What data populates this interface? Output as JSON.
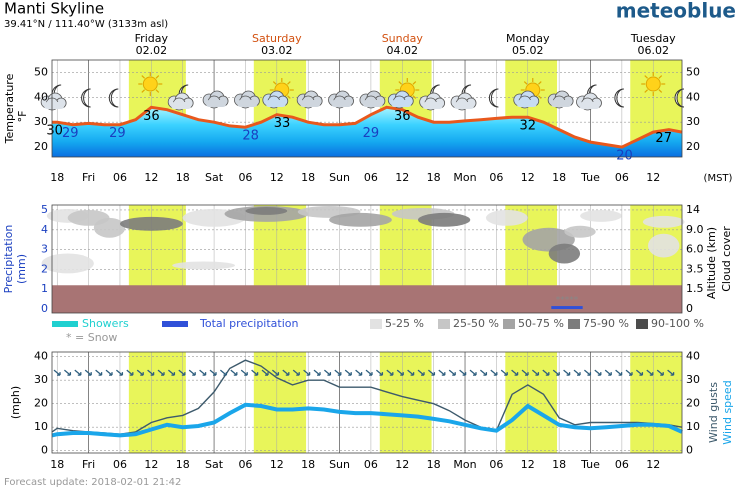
{
  "header": {
    "title": "Manti Skyline",
    "location": "39.41°N / 111.40°W (3133m asl)",
    "brand": "meteoblue"
  },
  "footer": "Forecast update: 2018-02-01 21:42",
  "timezone": "(MST)",
  "daylight": [
    [
      13.7,
      24.6
    ],
    [
      37.6,
      47.6
    ],
    [
      61.7,
      71.6
    ],
    [
      85.7,
      95.6
    ],
    [
      109.6,
      119.5
    ]
  ],
  "chart_data": [
    {
      "type": "line",
      "ylabel": "Temperature",
      "yunit": "°F",
      "xlim": [
        -1,
        119.5
      ],
      "ylim": [
        16,
        55
      ],
      "yticks": [
        20,
        30,
        40,
        50
      ],
      "color": "#e8581c",
      "xticks": [
        {
          "value": 0,
          "label": "18"
        },
        {
          "value": 6,
          "label": "Fri"
        },
        {
          "value": 12,
          "label": "06"
        },
        {
          "value": 18,
          "label": "12"
        },
        {
          "value": 24,
          "label": "18"
        },
        {
          "value": 30,
          "label": "Sat"
        },
        {
          "value": 36,
          "label": "06"
        },
        {
          "value": 42,
          "label": "12"
        },
        {
          "value": 48,
          "label": "18"
        },
        {
          "value": 54,
          "label": "Sun"
        },
        {
          "value": 60,
          "label": "06"
        },
        {
          "value": 66,
          "label": "12"
        },
        {
          "value": 72,
          "label": "18"
        },
        {
          "value": 78,
          "label": "Mon"
        },
        {
          "value": 84,
          "label": "06"
        },
        {
          "value": 90,
          "label": "12"
        },
        {
          "value": 96,
          "label": "18"
        },
        {
          "value": 102,
          "label": "Tue"
        },
        {
          "value": 108,
          "label": "06"
        },
        {
          "value": 114,
          "label": "12"
        }
      ],
      "day_labels": [
        {
          "x": 18,
          "day": "Friday",
          "date": "02.02",
          "color": "#000000"
        },
        {
          "x": 42,
          "day": "Saturday",
          "date": "03.02",
          "color": "#d2500f"
        },
        {
          "x": 66,
          "day": "Sunday",
          "date": "04.02",
          "color": "#d2500f"
        },
        {
          "x": 90,
          "day": "Monday",
          "date": "05.02",
          "color": "#000000"
        },
        {
          "x": 114,
          "day": "Tuesday",
          "date": "06.02",
          "color": "#000000"
        }
      ],
      "x": [
        -1,
        0,
        3,
        6,
        9,
        12,
        15,
        18,
        21,
        24,
        27,
        30,
        33,
        36,
        39,
        42,
        45,
        48,
        51,
        54,
        57,
        60,
        63,
        66,
        69,
        72,
        75,
        78,
        81,
        84,
        87,
        90,
        93,
        96,
        99,
        102,
        105,
        108,
        111,
        114,
        117,
        119.5
      ],
      "values": [
        30,
        30,
        29,
        29.5,
        29,
        29,
        31,
        36,
        35,
        33,
        31,
        30,
        28.5,
        28,
        30,
        33,
        32,
        30,
        29,
        29,
        29.5,
        33,
        36,
        35,
        32,
        30,
        30,
        30.5,
        31,
        31.5,
        32,
        32,
        30,
        27,
        24,
        22,
        21,
        20,
        23,
        26,
        27,
        26
      ],
      "temperature_labels": [
        {
          "x": -0.5,
          "value": 30,
          "color": "#000000"
        },
        {
          "x": 2.5,
          "value": 29,
          "color": "#1a3fc0"
        },
        {
          "x": 11.5,
          "value": 29,
          "color": "#1a3fc0"
        },
        {
          "x": 18,
          "value": 36,
          "color": "#000000"
        },
        {
          "x": 37,
          "value": 28,
          "color": "#1a3fc0"
        },
        {
          "x": 43,
          "value": 33,
          "color": "#000000"
        },
        {
          "x": 60,
          "value": 29,
          "color": "#1a3fc0"
        },
        {
          "x": 66,
          "value": 36,
          "color": "#000000"
        },
        {
          "x": 90,
          "value": 32,
          "color": "#000000"
        },
        {
          "x": 108.5,
          "value": 20,
          "color": "#1a3fc0"
        },
        {
          "x": 116,
          "value": 27,
          "color": "#000000"
        }
      ],
      "icons": [
        {
          "x": -0.4,
          "kind": "cloudmoon"
        },
        {
          "x": 6,
          "kind": "moon"
        },
        {
          "x": 11.3,
          "kind": "moon"
        },
        {
          "x": 17.8,
          "kind": "sun"
        },
        {
          "x": 23.9,
          "kind": "cloudmoon"
        },
        {
          "x": 30,
          "kind": "cloud"
        },
        {
          "x": 36,
          "kind": "cloud"
        },
        {
          "x": 42,
          "kind": "suncloud"
        },
        {
          "x": 48,
          "kind": "cloud"
        },
        {
          "x": 54,
          "kind": "cloud"
        },
        {
          "x": 60,
          "kind": "cloud"
        },
        {
          "x": 66,
          "kind": "suncloud"
        },
        {
          "x": 72,
          "kind": "cloudmoon"
        },
        {
          "x": 78,
          "kind": "cloudmoon"
        },
        {
          "x": 84,
          "kind": "moon"
        },
        {
          "x": 90,
          "kind": "suncloud"
        },
        {
          "x": 96,
          "kind": "cloud"
        },
        {
          "x": 102,
          "kind": "cloudmoon"
        },
        {
          "x": 108,
          "kind": "moon"
        },
        {
          "x": 114,
          "kind": "sun"
        },
        {
          "x": 119.5,
          "kind": "moon"
        }
      ]
    },
    {
      "type": "cloud",
      "ylabel": "Precipitation",
      "yunit": "(mm)",
      "y2label": "Altitude (km)",
      "y3label": "Cloud cover",
      "xlim": [
        -1,
        119.5
      ],
      "ylim": [
        -0.2,
        5.25
      ],
      "yticks": [
        0,
        1,
        2,
        3,
        4,
        5
      ],
      "xticks": [
        0,
        6,
        12,
        18,
        24,
        30,
        36,
        42,
        48,
        54,
        60,
        66,
        72,
        78,
        84,
        90,
        96,
        102,
        108,
        114
      ],
      "y2ticks": [
        {
          "value": 0,
          "label": "0"
        },
        {
          "value": 1.5,
          "label": "1.5"
        },
        {
          "value": 3.5,
          "label": "3.5"
        },
        {
          "value": 6,
          "label": "6.0"
        },
        {
          "value": 9,
          "label": "9.0"
        },
        {
          "value": 14,
          "label": "14"
        }
      ],
      "low_cloud": {
        "top": 1.2,
        "color": "#a87474"
      },
      "cloud_patches": [
        {
          "x": 2,
          "y": 4.7,
          "rx": 4,
          "ry": 0.35,
          "shade": 0
        },
        {
          "x": 6,
          "y": 4.6,
          "rx": 4,
          "ry": 0.4,
          "shade": 1
        },
        {
          "x": 10,
          "y": 4.1,
          "rx": 3,
          "ry": 0.5,
          "shade": 1
        },
        {
          "x": 2,
          "y": 2.3,
          "rx": 5,
          "ry": 0.5,
          "shade": 0
        },
        {
          "x": 18,
          "y": 4.3,
          "rx": 6,
          "ry": 0.35,
          "shade": 3
        },
        {
          "x": 30,
          "y": 4.6,
          "rx": 6,
          "ry": 0.45,
          "shade": 0
        },
        {
          "x": 40,
          "y": 4.8,
          "rx": 8,
          "ry": 0.4,
          "shade": 2
        },
        {
          "x": 40,
          "y": 4.95,
          "rx": 4,
          "ry": 0.2,
          "shade": 3
        },
        {
          "x": 52,
          "y": 4.9,
          "rx": 6,
          "ry": 0.3,
          "shade": 1
        },
        {
          "x": 58,
          "y": 4.5,
          "rx": 6,
          "ry": 0.35,
          "shade": 2
        },
        {
          "x": 70,
          "y": 4.8,
          "rx": 6,
          "ry": 0.3,
          "shade": 1
        },
        {
          "x": 74,
          "y": 4.5,
          "rx": 5,
          "ry": 0.35,
          "shade": 3
        },
        {
          "x": 86,
          "y": 4.6,
          "rx": 4,
          "ry": 0.4,
          "shade": 0
        },
        {
          "x": 94,
          "y": 3.5,
          "rx": 5,
          "ry": 0.6,
          "shade": 2
        },
        {
          "x": 97,
          "y": 2.8,
          "rx": 3,
          "ry": 0.5,
          "shade": 3
        },
        {
          "x": 100,
          "y": 3.9,
          "rx": 3,
          "ry": 0.3,
          "shade": 1
        },
        {
          "x": 104,
          "y": 4.7,
          "rx": 4,
          "ry": 0.3,
          "shade": 0
        },
        {
          "x": 116,
          "y": 4.4,
          "rx": 4,
          "ry": 0.3,
          "shade": 0
        },
        {
          "x": 116,
          "y": 3.2,
          "rx": 3,
          "ry": 0.6,
          "shade": 0
        },
        {
          "x": 28,
          "y": 2.2,
          "rx": 6,
          "ry": 0.2,
          "shade": 0
        }
      ],
      "precipitation": {
        "x": [
          96,
          99
        ],
        "values": [
          0.15,
          0.15
        ],
        "color": "#3050d8"
      },
      "snow_marker": "*****",
      "legend": {
        "showers": {
          "name": "Showers",
          "color": "#20d0d0"
        },
        "total": {
          "name": "Total precipitation",
          "color": "#3050d8"
        },
        "snow": "* = Snow",
        "cover": [
          {
            "name": "5-25 %",
            "color": "#e2e2e2"
          },
          {
            "name": "25-50 %",
            "color": "#c6c6c6"
          },
          {
            "name": "50-75 %",
            "color": "#a4a4a4"
          },
          {
            "name": "75-90 %",
            "color": "#7c7c7c"
          },
          {
            "name": "90-100 %",
            "color": "#4c4c4c"
          }
        ]
      }
    },
    {
      "type": "wind",
      "ylabel": "(mph)",
      "xlim": [
        -1,
        119.5
      ],
      "ylim": [
        -1,
        42
      ],
      "yticks": [
        0,
        10,
        20,
        30,
        40
      ],
      "direction_row": 33,
      "xticks": [
        {
          "value": 0,
          "label": "18"
        },
        {
          "value": 6,
          "label": "Fri"
        },
        {
          "value": 12,
          "label": "06"
        },
        {
          "value": 18,
          "label": "12"
        },
        {
          "value": 24,
          "label": "18"
        },
        {
          "value": 30,
          "label": "Sat"
        },
        {
          "value": 36,
          "label": "06"
        },
        {
          "value": 42,
          "label": "12"
        },
        {
          "value": 48,
          "label": "18"
        },
        {
          "value": 54,
          "label": "Sun"
        },
        {
          "value": 60,
          "label": "06"
        },
        {
          "value": 66,
          "label": "12"
        },
        {
          "value": 72,
          "label": "18"
        },
        {
          "value": 78,
          "label": "Mon"
        },
        {
          "value": 84,
          "label": "06"
        },
        {
          "value": 90,
          "label": "12"
        },
        {
          "value": 96,
          "label": "18"
        },
        {
          "value": 102,
          "label": "Tue"
        },
        {
          "value": 108,
          "label": "06"
        },
        {
          "value": 114,
          "label": "12"
        }
      ],
      "x": [
        -1,
        0,
        3,
        6,
        9,
        12,
        15,
        18,
        21,
        24,
        27,
        30,
        33,
        36,
        39,
        42,
        45,
        48,
        51,
        54,
        57,
        60,
        63,
        66,
        69,
        72,
        75,
        78,
        81,
        84,
        87,
        90,
        93,
        96,
        99,
        102,
        105,
        108,
        111,
        114,
        117,
        119.5
      ],
      "series": [
        {
          "name": "Wind gusts",
          "color": "#3d5a6c",
          "values": [
            8,
            9.5,
            8.5,
            8,
            7.5,
            7,
            8,
            12,
            14,
            15,
            18,
            25,
            35,
            38.5,
            36,
            31,
            28,
            30,
            30,
            27,
            27,
            27,
            25,
            23,
            21.5,
            20,
            17,
            13,
            10,
            8.5,
            24,
            28,
            24,
            14,
            11,
            12,
            12,
            12,
            12,
            11.5,
            11,
            10
          ]
        },
        {
          "name": "Wind speed",
          "color": "#1aa6ea",
          "values": [
            6.5,
            7,
            7.5,
            7.5,
            7,
            6.5,
            7,
            9,
            11,
            10,
            10.5,
            12,
            16,
            19.5,
            19,
            17.5,
            17.5,
            18,
            17.5,
            16.5,
            16,
            16,
            15.5,
            15,
            14.5,
            13.5,
            12.5,
            11,
            9.5,
            8.5,
            13,
            19,
            15,
            11,
            10,
            9.5,
            10,
            10.5,
            11,
            11,
            10.5,
            8
          ]
        }
      ]
    }
  ]
}
